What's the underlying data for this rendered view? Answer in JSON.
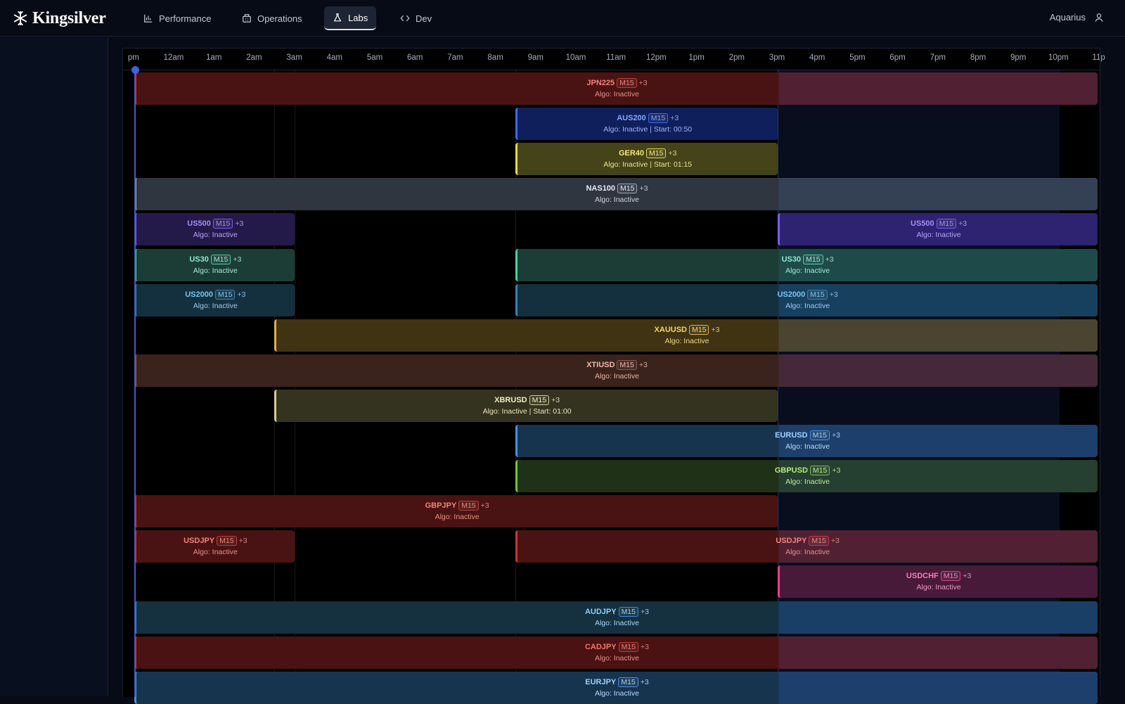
{
  "app": {
    "brand": "Kingsilver",
    "nav": [
      {
        "label": "Performance",
        "icon": "bar-chart-icon",
        "active": false
      },
      {
        "label": "Operations",
        "icon": "building-icon",
        "active": false
      },
      {
        "label": "Labs",
        "icon": "flask-icon",
        "active": true
      },
      {
        "label": "Dev",
        "icon": "code-icon",
        "active": false
      }
    ],
    "user": {
      "name": "Aquarius",
      "icon": "user-icon"
    }
  },
  "timeline": {
    "ticks": [
      "pm",
      "12am",
      "1am",
      "2am",
      "3am",
      "4am",
      "5am",
      "6am",
      "7am",
      "8am",
      "9am",
      "10am",
      "11am",
      "12pm",
      "1pm",
      "2pm",
      "3pm",
      "4pm",
      "5pm",
      "6pm",
      "7pm",
      "8pm",
      "9pm",
      "10pm",
      "11p"
    ],
    "axis_start_hour": -0.5,
    "end_hour": 23.5,
    "now_hour": -0.5,
    "shade_from_hour": 15.5,
    "highlight_lines_hours": [
      2.98,
      3.48,
      8.98
    ],
    "colors": {
      "red": {
        "bg": "#4a1313",
        "bg2": "#522033",
        "border": "#c23a3a",
        "text": "#f0857a",
        "sub": "#e6908a"
      },
      "blue": {
        "bg": "#0f1f5c",
        "bg2": "#13236b",
        "border": "#3b6cf0",
        "text": "#86a6ff",
        "sub": "#9fb6ff"
      },
      "yellow": {
        "bg": "#45431a",
        "bg2": "#45431a",
        "border": "#e3d94a",
        "text": "#f2ea74",
        "sub": "#eae48f"
      },
      "slate": {
        "bg": "#2f363f",
        "bg2": "#344054",
        "border": "#a0a8b6",
        "text": "#e7eaf0",
        "sub": "#cfd4dc"
      },
      "purple": {
        "bg": "#241a4a",
        "bg2": "#2d2370",
        "border": "#7a5cf0",
        "text": "#a78bfa",
        "sub": "#b7a4fb"
      },
      "green": {
        "bg": "#1c3d35",
        "bg2": "#1f4a4a",
        "border": "#4fcf9f",
        "text": "#8ee8cf",
        "sub": "#a2ead6"
      },
      "steel": {
        "bg": "#14303f",
        "bg2": "#17405e",
        "border": "#3a7fb5",
        "text": "#7cc3ef",
        "sub": "#96cdef"
      },
      "gold": {
        "bg": "#3f3313",
        "bg2": "#4a4431",
        "border": "#e0b040",
        "text": "#f5d46a",
        "sub": "#f0d98a"
      },
      "brown": {
        "bg": "#3a231c",
        "bg2": "#45293b",
        "border": "#8e5a48",
        "text": "#f0b8a8",
        "sub": "#e8b4a6"
      },
      "olive": {
        "bg": "#34331f",
        "bg2": "#34331f",
        "border": "#d8cc92",
        "text": "#f2ecc8",
        "sub": "#eae4c0"
      },
      "ocean": {
        "bg": "#17344f",
        "bg2": "#1c406b",
        "border": "#4a90e2",
        "text": "#9fd0ff",
        "sub": "#b5dbff"
      },
      "lime": {
        "bg": "#1f3218",
        "bg2": "#253f31",
        "border": "#7bbf3a",
        "text": "#b5ec7a",
        "sub": "#c2eb98"
      },
      "rose": {
        "bg": "#471a3a",
        "bg2": "#471a3a",
        "border": "#e8408a",
        "text": "#f77fb5",
        "sub": "#f29ac4"
      },
      "cyan": {
        "bg": "#15303f",
        "bg2": "#1a3f66",
        "border": "#3b8ad8",
        "text": "#8fd0ff",
        "sub": "#a7d8ff"
      },
      "crimson": {
        "bg": "#4a1212",
        "bg2": "#522033",
        "border": "#c23a3a",
        "text": "#f07a6e",
        "sub": "#e6908a"
      }
    },
    "rows": [
      {
        "bars": [
          {
            "symbol": "JPN225",
            "tf": "M15",
            "extra": "+3",
            "status": "Algo: Inactive",
            "start": -0.5,
            "end": 23.45,
            "color": "red"
          }
        ]
      },
      {
        "bars": [
          {
            "symbol": "AUS200",
            "tf": "M15",
            "extra": "+3",
            "status": "Algo: Inactive | Start: 00:50",
            "start": 8.98,
            "end": 15.5,
            "color": "blue"
          }
        ]
      },
      {
        "bars": [
          {
            "symbol": "GER40",
            "tf": "M15",
            "extra": "+3",
            "status": "Algo: Inactive | Start: 01:15",
            "start": 8.98,
            "end": 15.5,
            "color": "yellow"
          }
        ]
      },
      {
        "bars": [
          {
            "symbol": "NAS100",
            "tf": "M15",
            "extra": "+3",
            "status": "Algo: Inactive",
            "start": -0.5,
            "end": 23.45,
            "color": "slate"
          }
        ]
      },
      {
        "bars": [
          {
            "symbol": "US500",
            "tf": "M15",
            "extra": "+3",
            "status": "Algo: Inactive",
            "start": -0.5,
            "end": 3.48,
            "color": "purple"
          },
          {
            "symbol": "US500",
            "tf": "M15",
            "extra": "+3",
            "status": "Algo: Inactive",
            "start": 15.5,
            "end": 23.45,
            "color": "purple"
          }
        ]
      },
      {
        "bars": [
          {
            "symbol": "US30",
            "tf": "M15",
            "extra": "+3",
            "status": "Algo: Inactive",
            "start": -0.5,
            "end": 3.48,
            "color": "green"
          },
          {
            "symbol": "US30",
            "tf": "M15",
            "extra": "+3",
            "status": "Algo: Inactive",
            "start": 8.98,
            "end": 23.45,
            "color": "green"
          }
        ]
      },
      {
        "bars": [
          {
            "symbol": "US2000",
            "tf": "M15",
            "extra": "+3",
            "status": "Algo: Inactive",
            "start": -0.5,
            "end": 3.48,
            "color": "steel"
          },
          {
            "symbol": "US2000",
            "tf": "M15",
            "extra": "+3",
            "status": "Algo: Inactive",
            "start": 8.98,
            "end": 23.45,
            "color": "steel"
          }
        ]
      },
      {
        "bars": [
          {
            "symbol": "XAUUSD",
            "tf": "M15",
            "extra": "+3",
            "status": "Algo: Inactive",
            "start": 2.98,
            "end": 23.45,
            "color": "gold"
          }
        ]
      },
      {
        "bars": [
          {
            "symbol": "XTIUSD",
            "tf": "M15",
            "extra": "+3",
            "status": "Algo: Inactive",
            "start": -0.5,
            "end": 23.45,
            "color": "brown"
          }
        ]
      },
      {
        "bars": [
          {
            "symbol": "XBRUSD",
            "tf": "M15",
            "extra": "+3",
            "status": "Algo: Inactive | Start: 01:00",
            "start": 2.98,
            "end": 15.5,
            "color": "olive"
          }
        ]
      },
      {
        "bars": [
          {
            "symbol": "EURUSD",
            "tf": "M15",
            "extra": "+3",
            "status": "Algo: Inactive",
            "start": 8.98,
            "end": 23.45,
            "color": "ocean"
          }
        ]
      },
      {
        "bars": [
          {
            "symbol": "GBPUSD",
            "tf": "M15",
            "extra": "+3",
            "status": "Algo: Inactive",
            "start": 8.98,
            "end": 23.45,
            "color": "lime"
          }
        ]
      },
      {
        "bars": [
          {
            "symbol": "GBPJPY",
            "tf": "M15",
            "extra": "+3",
            "status": "Algo: Inactive",
            "start": -0.5,
            "end": 15.5,
            "color": "red"
          }
        ]
      },
      {
        "bars": [
          {
            "symbol": "USDJPY",
            "tf": "M15",
            "extra": "+3",
            "status": "Algo: Inactive",
            "start": -0.5,
            "end": 3.48,
            "color": "red"
          },
          {
            "symbol": "USDJPY",
            "tf": "M15",
            "extra": "+3",
            "status": "Algo: Inactive",
            "start": 8.98,
            "end": 23.45,
            "color": "red"
          }
        ]
      },
      {
        "bars": [
          {
            "symbol": "USDCHF",
            "tf": "M15",
            "extra": "+3",
            "status": "Algo: Inactive",
            "start": 15.5,
            "end": 23.45,
            "color": "rose"
          }
        ]
      },
      {
        "bars": [
          {
            "symbol": "AUDJPY",
            "tf": "M15",
            "extra": "+3",
            "status": "Algo: Inactive",
            "start": -0.5,
            "end": 23.45,
            "color": "cyan"
          }
        ]
      },
      {
        "bars": [
          {
            "symbol": "CADJPY",
            "tf": "M15",
            "extra": "+3",
            "status": "Algo: Inactive",
            "start": -0.5,
            "end": 23.45,
            "color": "crimson"
          }
        ]
      },
      {
        "bars": [
          {
            "symbol": "EURJPY",
            "tf": "M15",
            "extra": "+3",
            "status": "Algo: Inactive",
            "start": -0.5,
            "end": 23.45,
            "color": "ocean"
          }
        ]
      }
    ]
  }
}
